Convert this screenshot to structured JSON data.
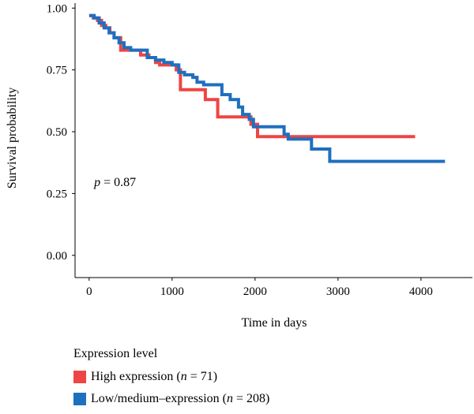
{
  "chart_data": {
    "type": "line",
    "xlabel": "Time in days",
    "ylabel": "Survival probability",
    "xlim": [
      -170,
      4620
    ],
    "ylim": [
      -0.09,
      1.02
    ],
    "xticks": [
      0,
      1000,
      2000,
      3000,
      4000
    ],
    "yticks": [
      0.0,
      0.25,
      0.5,
      0.75,
      1.0
    ],
    "xtick_labels": [
      "0",
      "1000",
      "2000",
      "3000",
      "4000"
    ],
    "ytick_labels": [
      "0.00",
      "0.25",
      "0.50",
      "0.75",
      "1.00"
    ],
    "annotation": {
      "italic": "p",
      "rest": " = 0.87",
      "x": 60,
      "y": 0.28
    },
    "legend_title": "Expression level",
    "legend_position": "bottom-left",
    "series": [
      {
        "name": "High expression (n = 71)",
        "name_prefix": "High expression (",
        "name_italic": "n",
        "name_suffix": " = 71)",
        "color": "#ef4444",
        "step": [
          [
            0,
            0.97
          ],
          [
            50,
            0.96
          ],
          [
            100,
            0.95
          ],
          [
            150,
            0.93
          ],
          [
            200,
            0.92
          ],
          [
            250,
            0.9
          ],
          [
            300,
            0.88
          ],
          [
            380,
            0.83
          ],
          [
            550,
            0.83
          ],
          [
            620,
            0.81
          ],
          [
            720,
            0.8
          ],
          [
            800,
            0.78
          ],
          [
            850,
            0.77
          ],
          [
            950,
            0.77
          ],
          [
            1050,
            0.75
          ],
          [
            1100,
            0.67
          ],
          [
            1400,
            0.63
          ],
          [
            1550,
            0.56
          ],
          [
            1880,
            0.56
          ],
          [
            1950,
            0.53
          ],
          [
            2030,
            0.48
          ],
          [
            3930,
            0.48
          ]
        ]
      },
      {
        "name": "Low/medium–expression (n = 208)",
        "name_prefix": "Low/medium–expression (",
        "name_italic": "n",
        "name_suffix": " = 208)",
        "color": "#1f6fbf",
        "step": [
          [
            0,
            0.97
          ],
          [
            60,
            0.96
          ],
          [
            120,
            0.94
          ],
          [
            180,
            0.92
          ],
          [
            240,
            0.9
          ],
          [
            300,
            0.88
          ],
          [
            360,
            0.86
          ],
          [
            420,
            0.84
          ],
          [
            500,
            0.83
          ],
          [
            700,
            0.8
          ],
          [
            800,
            0.79
          ],
          [
            900,
            0.78
          ],
          [
            1000,
            0.77
          ],
          [
            1080,
            0.74
          ],
          [
            1150,
            0.73
          ],
          [
            1250,
            0.72
          ],
          [
            1300,
            0.7
          ],
          [
            1380,
            0.69
          ],
          [
            1600,
            0.65
          ],
          [
            1700,
            0.63
          ],
          [
            1800,
            0.6
          ],
          [
            1850,
            0.57
          ],
          [
            1930,
            0.55
          ],
          [
            1980,
            0.52
          ],
          [
            2350,
            0.49
          ],
          [
            2400,
            0.47
          ],
          [
            2680,
            0.43
          ],
          [
            2900,
            0.38
          ],
          [
            4290,
            0.38
          ]
        ]
      }
    ]
  }
}
